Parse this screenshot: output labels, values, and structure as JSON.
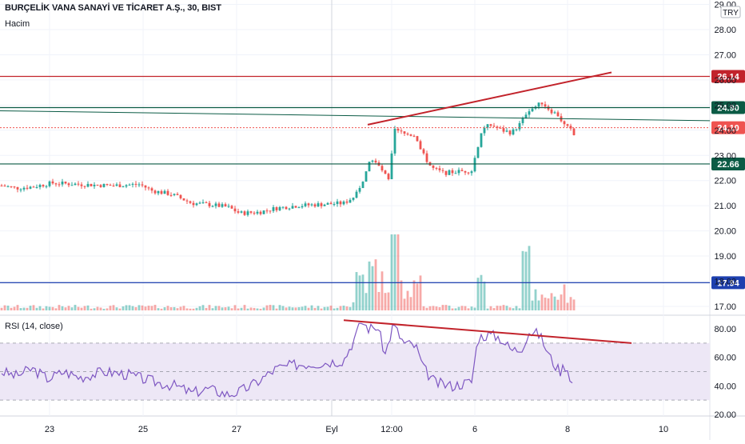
{
  "header": {
    "title": "BURÇELİK VANA SANAYİ VE TİCARET A.Ş., 30, BIST",
    "subtitle": "Hacim",
    "currency": "TRY",
    "rsi_label": "RSI (14, close)"
  },
  "price_axis": {
    "ticks": [
      "29.00",
      "28.00",
      "27.00",
      "26.00",
      "25.00",
      "24.00",
      "23.00",
      "22.00",
      "21.00",
      "20.00",
      "19.00",
      "18.00",
      "17.00"
    ]
  },
  "rsi_axis": {
    "ticks": [
      "80.00",
      "60.00",
      "40.00",
      "20.00"
    ]
  },
  "time_axis": {
    "ticks": [
      "23",
      "25",
      "27",
      "Eyl",
      "12:00",
      "6",
      "8",
      "10"
    ]
  },
  "price_levels": [
    {
      "label": "26.14",
      "value": 26.14,
      "color": "#c2232b"
    },
    {
      "label": "24.90",
      "value": 24.9,
      "color": "#0b5b45"
    },
    {
      "label": "24.10",
      "value": 24.1,
      "color": "#ef5350"
    },
    {
      "label": "22.66",
      "value": 22.66,
      "color": "#0b5b45"
    },
    {
      "label": "17.94",
      "value": 17.94,
      "color": "#1e40af"
    }
  ],
  "colors": {
    "up": "#26a69a",
    "down": "#ef5350",
    "trend": "#c2232b",
    "rsi_line": "#7e57c2",
    "rsi_band": "#ede7f6"
  },
  "chart_data": [
    {
      "type": "candlestick",
      "ylim": [
        17.0,
        29.0
      ],
      "x": [
        "23",
        "25",
        "27",
        "Eyl",
        "12:00",
        "6",
        "8",
        "10"
      ],
      "close_approx": [
        21.8,
        21.7,
        21.5,
        21.2,
        20.6,
        21.1,
        21.3,
        22.9,
        21.9,
        24.0,
        23.8,
        22.5,
        22.3,
        22.4,
        24.2,
        24.0,
        24.6,
        25.3,
        24.2,
        23.9
      ],
      "horizontal_levels": [
        26.14,
        24.9,
        24.1,
        22.66,
        17.94
      ],
      "annotations": [
        "rising trendline from ~24.2 to ~26.3",
        "sloping support line from ~24.9 to ~24.4"
      ]
    },
    {
      "type": "bar",
      "series": [
        {
          "name": "Hacim",
          "values_relative": [
            0.05,
            0.05,
            0.06,
            0.05,
            0.06,
            0.05,
            0.07,
            0.4,
            0.8,
            1.0,
            0.3,
            0.15,
            0.1,
            0.1,
            0.45,
            0.3,
            0.9,
            0.95,
            0.25,
            0.2
          ]
        }
      ]
    },
    {
      "type": "line",
      "ylim": [
        20,
        90
      ],
      "series": [
        {
          "name": "RSI (14, close)",
          "values": [
            55,
            52,
            50,
            48,
            44,
            42,
            52,
            85,
            80,
            83,
            62,
            45,
            40,
            44,
            78,
            75,
            78,
            76,
            55,
            45
          ]
        }
      ],
      "bands": [
        30,
        50,
        70
      ],
      "annotations": [
        "falling trendline from ~85 to ~70"
      ]
    }
  ]
}
